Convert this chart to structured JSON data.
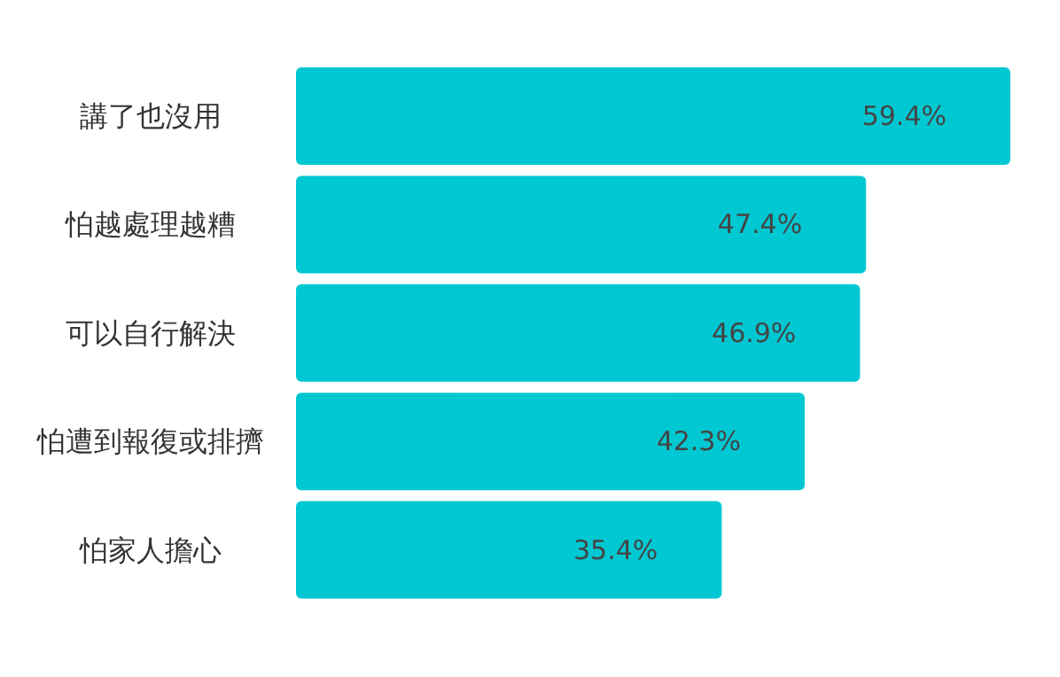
{
  "chart_data": {
    "type": "bar",
    "orientation": "horizontal",
    "categories": [
      "講了也沒用",
      "怕越處理越糟",
      "可以自行解決",
      "怕遭到報復或排擠",
      "怕家人擔心"
    ],
    "values": [
      59.4,
      47.4,
      46.9,
      42.3,
      35.4
    ],
    "value_labels": [
      "59.4%",
      "47.4%",
      "46.9%",
      "42.3%",
      "35.4%"
    ],
    "color": "#00c8d2"
  }
}
